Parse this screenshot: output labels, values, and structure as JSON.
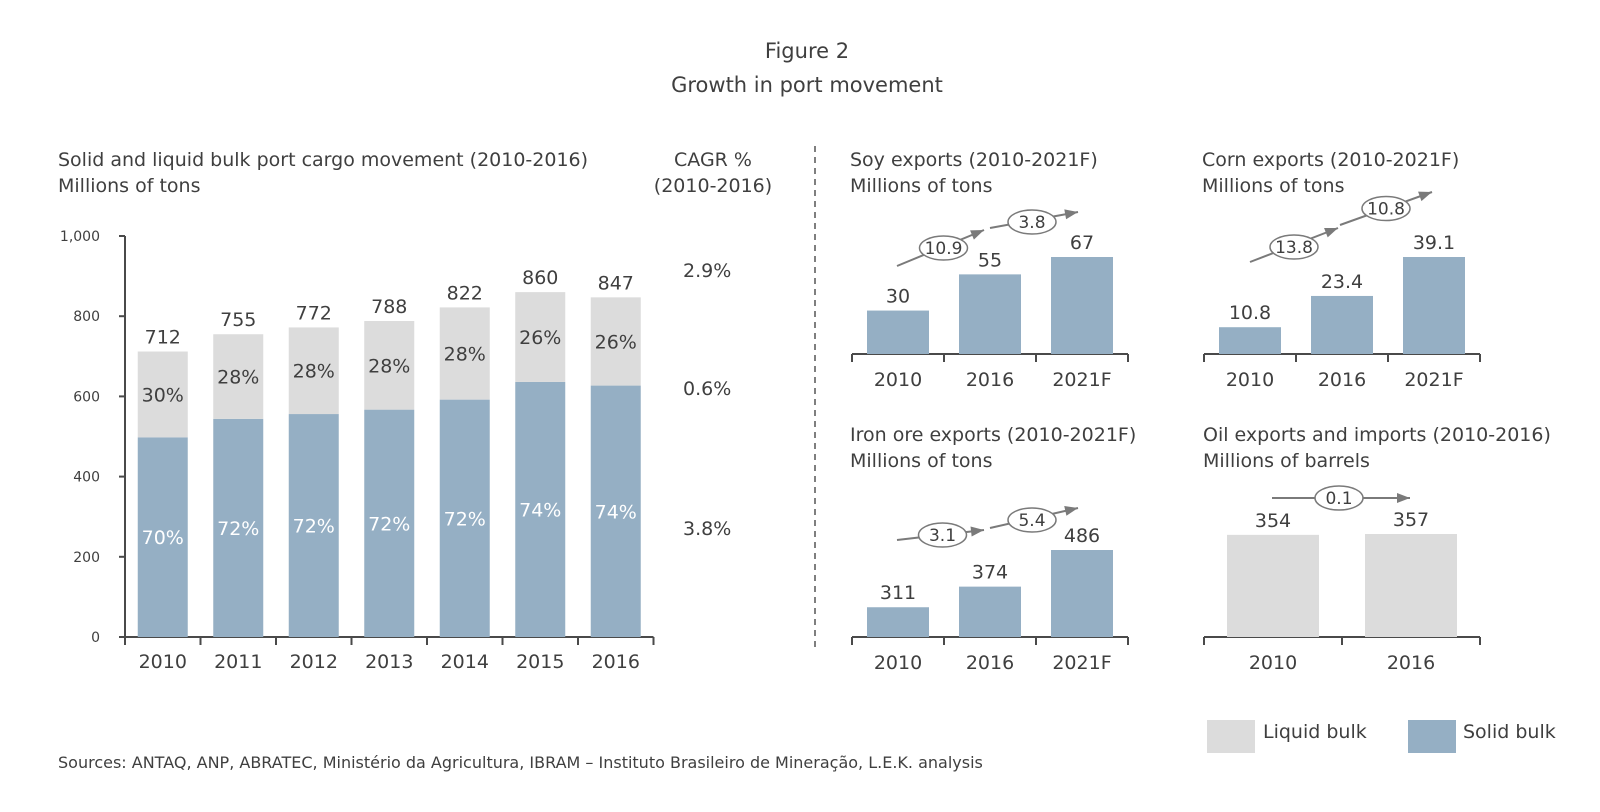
{
  "figure": {
    "title": "Figure 2",
    "subtitle": "Growth in port movement"
  },
  "colors": {
    "solid": "#95afc4",
    "liquid": "#dcdcdc"
  },
  "chart_data": [
    {
      "id": "main",
      "type": "bar",
      "stacked": true,
      "title": "Solid and liquid bulk port cargo movement (2010-2016)",
      "unit": "Millions of tons",
      "categories": [
        "2010",
        "2011",
        "2012",
        "2013",
        "2014",
        "2015",
        "2016"
      ],
      "totals": [
        712,
        755,
        772,
        788,
        822,
        860,
        847
      ],
      "series": [
        {
          "name": "Solid bulk",
          "values": [
            498,
            544,
            556,
            567,
            592,
            636,
            627
          ],
          "share_labels": [
            "70%",
            "72%",
            "72%",
            "72%",
            "72%",
            "74%",
            "74%"
          ]
        },
        {
          "name": "Liquid bulk",
          "values": [
            214,
            211,
            216,
            221,
            230,
            224,
            220
          ],
          "share_labels": [
            "30%",
            "28%",
            "28%",
            "28%",
            "28%",
            "26%",
            "26%"
          ]
        }
      ],
      "yticks": [
        "0",
        "200",
        "400",
        "600",
        "800",
        "1,000"
      ],
      "ylim": [
        0,
        1000
      ],
      "cagr_header": [
        "CAGR %",
        "(2010-2016)"
      ],
      "cagr": {
        "total": "2.9%",
        "liquid": "0.6%",
        "solid": "3.8%"
      }
    },
    {
      "id": "soy",
      "type": "bar",
      "title": "Soy exports (2010-2021F)",
      "unit": "Millions of tons",
      "categories": [
        "2010",
        "2016",
        "2021F"
      ],
      "values": [
        30,
        55,
        67
      ],
      "value_labels": [
        "30",
        "55",
        "67"
      ],
      "growth": [
        "10.9",
        "3.8"
      ]
    },
    {
      "id": "corn",
      "type": "bar",
      "title": "Corn exports (2010-2021F)",
      "unit": "Millions of tons",
      "categories": [
        "2010",
        "2016",
        "2021F"
      ],
      "values": [
        10.8,
        23.4,
        39.1
      ],
      "value_labels": [
        "10.8",
        "23.4",
        "39.1"
      ],
      "growth": [
        "13.8",
        "10.8"
      ]
    },
    {
      "id": "iron",
      "type": "bar",
      "title": "Iron ore exports (2010-2021F)",
      "unit": "Millions of tons",
      "categories": [
        "2010",
        "2016",
        "2021F"
      ],
      "values": [
        311,
        374,
        486
      ],
      "value_labels": [
        "311",
        "374",
        "486"
      ],
      "growth": [
        "3.1",
        "5.4"
      ]
    },
    {
      "id": "oil",
      "type": "bar",
      "title": "Oil exports and imports (2010-2016)",
      "unit": "Millions of barrels",
      "categories": [
        "2010",
        "2016"
      ],
      "values": [
        354,
        357
      ],
      "value_labels": [
        "354",
        "357"
      ],
      "growth": [
        "0.1"
      ]
    }
  ],
  "legend": {
    "liquid_label": "Liquid bulk",
    "solid_label": "Solid bulk",
    "placement": "bottom-right"
  },
  "source": "Sources: ANTAQ, ANP, ABRATEC, Ministério da Agricultura, IBRAM – Instituto Brasileiro de Mineração, L.E.K. analysis"
}
